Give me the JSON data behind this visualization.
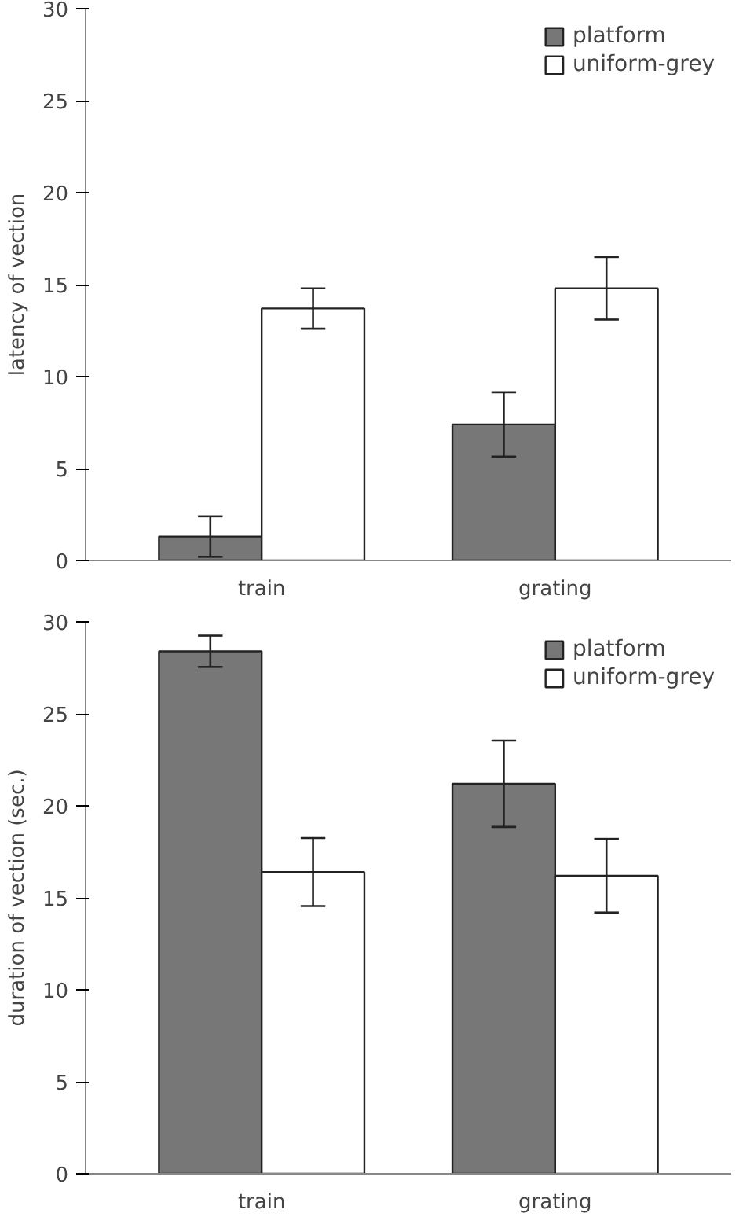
{
  "chart_data": [
    {
      "type": "bar",
      "ylabel": "latency of vection",
      "categories": [
        "train",
        "grating"
      ],
      "ylim": [
        0,
        30
      ],
      "yticks": [
        0,
        5,
        10,
        15,
        20,
        25,
        30
      ],
      "legend": "top right",
      "grid": false,
      "series": [
        {
          "name": "platform",
          "color": "#777777",
          "values": [
            1.3,
            7.4
          ],
          "errors": [
            1.1,
            1.75
          ]
        },
        {
          "name": "uniform-grey",
          "color": "#ffffff",
          "values": [
            13.7,
            14.8
          ],
          "errors": [
            1.1,
            1.7
          ]
        }
      ]
    },
    {
      "type": "bar",
      "ylabel": "duration of vection (sec.)",
      "categories": [
        "train",
        "grating"
      ],
      "ylim": [
        0,
        30
      ],
      "yticks": [
        0,
        5,
        10,
        15,
        20,
        25,
        30
      ],
      "legend": "top right",
      "grid": false,
      "series": [
        {
          "name": "platform",
          "color": "#777777",
          "values": [
            28.4,
            21.2
          ],
          "errors": [
            0.85,
            2.35
          ]
        },
        {
          "name": "uniform-grey",
          "color": "#ffffff",
          "values": [
            16.4,
            16.2
          ],
          "errors": [
            1.85,
            2.0
          ]
        }
      ]
    }
  ]
}
